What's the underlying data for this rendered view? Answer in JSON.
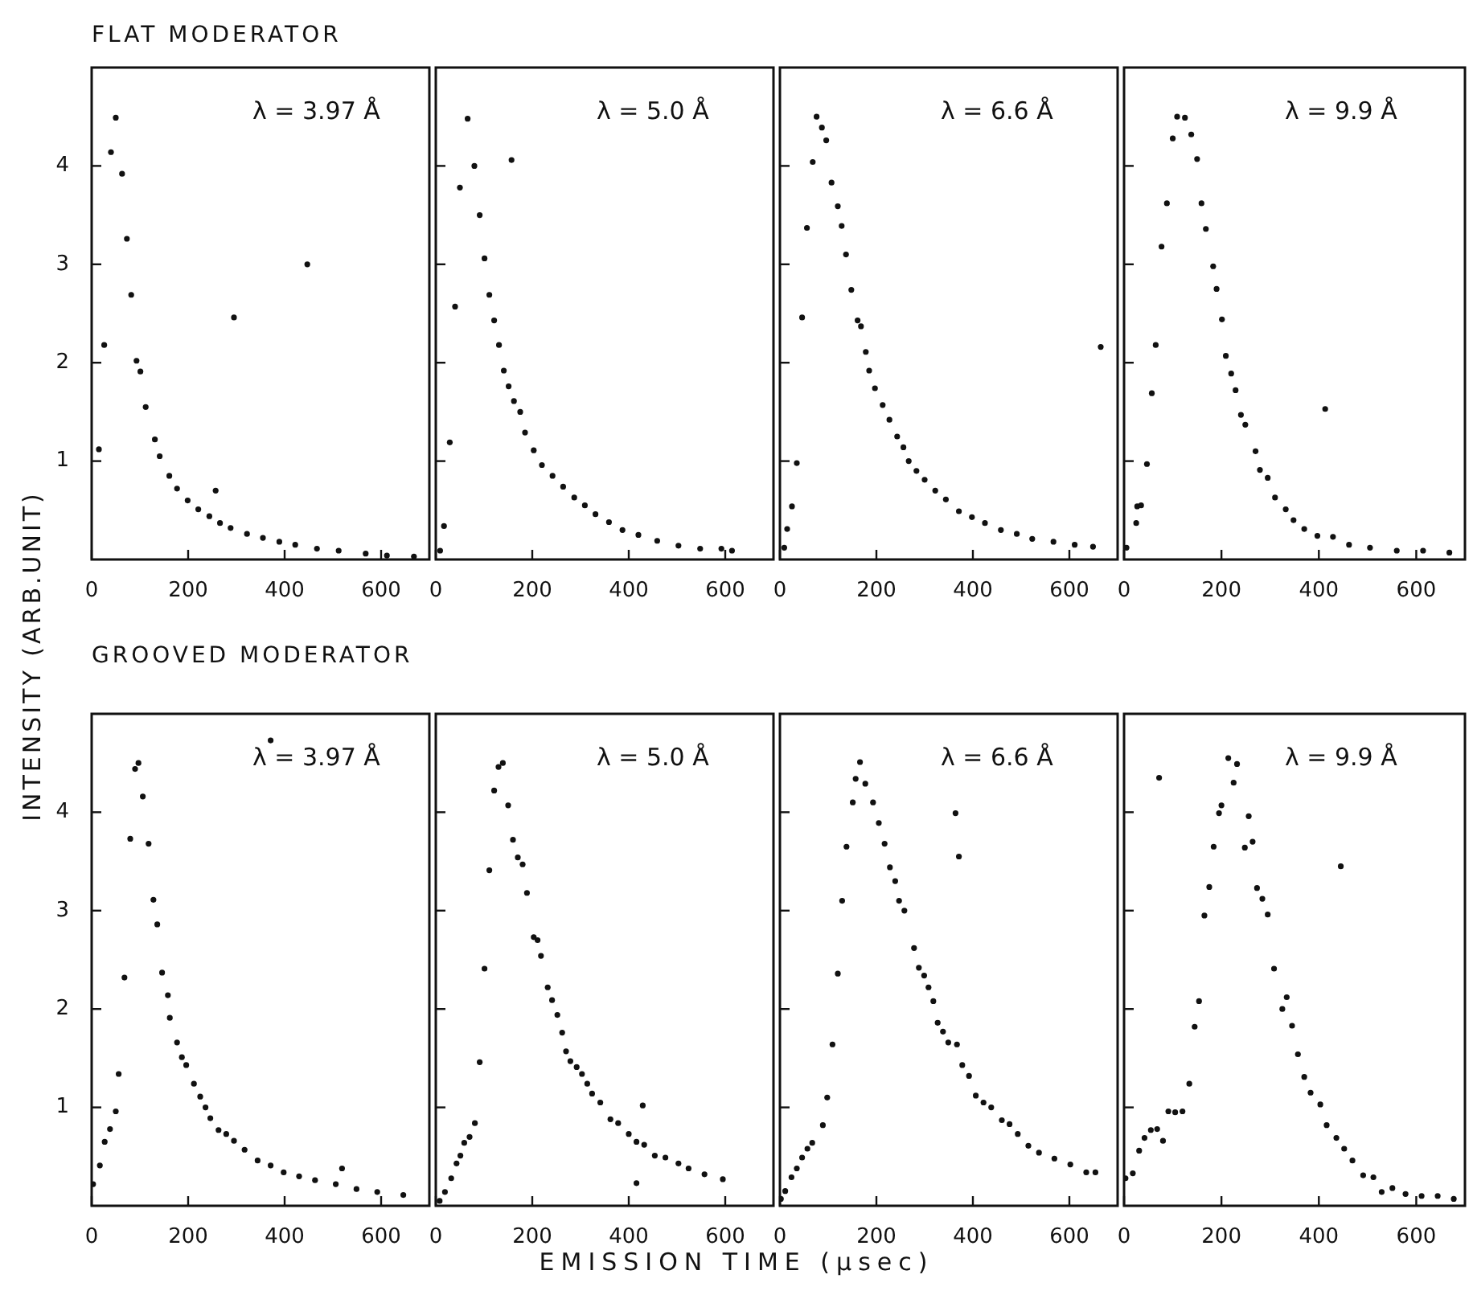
{
  "chart_data": [
    {
      "type": "scatter",
      "title": "FLAT MODERATOR",
      "ylabel": "INTENSITY (ARB.UNIT)",
      "annotations": [
        "λ = 3.97 Å"
      ],
      "color": "#111111",
      "marker": "circle",
      "xlim": [
        0,
        700
      ],
      "xticks": [
        0,
        200,
        400,
        600
      ],
      "ylim": [
        0,
        5
      ],
      "yticks": [
        1,
        2,
        3,
        4
      ],
      "x": [
        15,
        26,
        40,
        50,
        63,
        73,
        82,
        93,
        101,
        112,
        131,
        141,
        161,
        177,
        199,
        221,
        244,
        266,
        288,
        322,
        355,
        389,
        422,
        467,
        512,
        568,
        612,
        668,
        295,
        447,
        257
      ],
      "values": [
        1.12,
        2.18,
        4.14,
        4.49,
        3.92,
        3.26,
        2.69,
        2.02,
        1.91,
        1.55,
        1.22,
        1.05,
        0.85,
        0.72,
        0.6,
        0.51,
        0.44,
        0.37,
        0.32,
        0.26,
        0.22,
        0.18,
        0.15,
        0.11,
        0.09,
        0.06,
        0.04,
        0.03,
        2.46,
        3.0,
        0.7
      ]
    },
    {
      "type": "scatter",
      "annotations": [
        "λ = 5.0 Å"
      ],
      "color": "#111111",
      "marker": "circle",
      "xlim": [
        0,
        700
      ],
      "xticks": [
        0,
        200,
        400,
        600
      ],
      "ylim": [
        0,
        5
      ],
      "yticks": [
        1,
        2,
        3,
        4
      ],
      "tick_labels": "x",
      "x": [
        9,
        17,
        29,
        40,
        50,
        66,
        80,
        91,
        101,
        111,
        121,
        131,
        141,
        151,
        162,
        175,
        185,
        203,
        220,
        242,
        264,
        287,
        309,
        331,
        359,
        387,
        420,
        459,
        503,
        548,
        592,
        614,
        157
      ],
      "values": [
        0.09,
        0.34,
        1.19,
        2.57,
        3.78,
        4.48,
        4.0,
        3.5,
        3.06,
        2.69,
        2.43,
        2.18,
        1.92,
        1.76,
        1.61,
        1.5,
        1.29,
        1.11,
        0.96,
        0.85,
        0.74,
        0.63,
        0.55,
        0.46,
        0.38,
        0.3,
        0.25,
        0.19,
        0.14,
        0.11,
        0.11,
        0.09,
        4.06
      ]
    },
    {
      "type": "scatter",
      "annotations": [
        "λ = 6.6 Å"
      ],
      "color": "#111111",
      "marker": "circle",
      "xlim": [
        0,
        700
      ],
      "xticks": [
        0,
        200,
        400,
        600
      ],
      "ylim": [
        0,
        5
      ],
      "yticks": [
        1,
        2,
        3,
        4
      ],
      "tick_labels": "x",
      "x": [
        9,
        15,
        25,
        35,
        46,
        56,
        68,
        76,
        87,
        96,
        107,
        120,
        128,
        137,
        148,
        161,
        168,
        178,
        185,
        197,
        213,
        227,
        243,
        256,
        267,
        283,
        300,
        322,
        344,
        371,
        398,
        425,
        458,
        491,
        523,
        567,
        611,
        649,
        665
      ],
      "values": [
        0.12,
        0.31,
        0.54,
        0.98,
        2.46,
        3.37,
        4.04,
        4.5,
        4.39,
        4.26,
        3.83,
        3.59,
        3.39,
        3.1,
        2.74,
        2.43,
        2.37,
        2.11,
        1.92,
        1.74,
        1.57,
        1.42,
        1.25,
        1.14,
        1.0,
        0.9,
        0.81,
        0.7,
        0.61,
        0.49,
        0.43,
        0.37,
        0.3,
        0.26,
        0.21,
        0.18,
        0.15,
        0.13,
        2.16
      ]
    },
    {
      "type": "scatter",
      "annotations": [
        "λ = 9.9 Å"
      ],
      "color": "#111111",
      "marker": "circle",
      "xlim": [
        0,
        700
      ],
      "xticks": [
        0,
        200,
        400,
        600
      ],
      "ylim": [
        0,
        5
      ],
      "yticks": [
        1,
        2,
        3,
        4
      ],
      "tick_labels": "x",
      "x": [
        5,
        25,
        27,
        35,
        47,
        57,
        65,
        77,
        88,
        100,
        109,
        125,
        138,
        150,
        159,
        168,
        183,
        190,
        201,
        209,
        220,
        229,
        240,
        249,
        270,
        279,
        295,
        310,
        332,
        348,
        370,
        397,
        429,
        462,
        505,
        560,
        614,
        668,
        413
      ],
      "values": [
        0.12,
        0.37,
        0.54,
        0.55,
        0.97,
        1.69,
        2.18,
        3.18,
        3.62,
        4.28,
        4.5,
        4.49,
        4.32,
        4.07,
        3.62,
        3.36,
        2.98,
        2.75,
        2.44,
        2.07,
        1.89,
        1.72,
        1.47,
        1.37,
        1.1,
        0.91,
        0.83,
        0.63,
        0.51,
        0.4,
        0.31,
        0.24,
        0.23,
        0.15,
        0.12,
        0.09,
        0.09,
        0.07,
        1.53
      ]
    },
    {
      "type": "scatter",
      "title": "GROOVED MODERATOR",
      "annotations": [
        "λ = 3.97 Å"
      ],
      "color": "#111111",
      "marker": "circle",
      "xlim": [
        0,
        700
      ],
      "xticks": [
        0,
        200,
        400,
        600
      ],
      "ylim": [
        0,
        5
      ],
      "yticks": [
        1,
        2,
        3,
        4
      ],
      "x": [
        3,
        17,
        27,
        38,
        50,
        56,
        68,
        80,
        90,
        97,
        106,
        118,
        128,
        136,
        146,
        158,
        162,
        177,
        187,
        196,
        212,
        225,
        236,
        246,
        263,
        279,
        295,
        317,
        344,
        371,
        398,
        430,
        463,
        506,
        549,
        592,
        646,
        371,
        519
      ],
      "values": [
        0.22,
        0.41,
        0.65,
        0.78,
        0.96,
        1.34,
        2.32,
        3.73,
        4.44,
        4.5,
        4.16,
        3.68,
        3.11,
        2.86,
        2.37,
        2.14,
        1.91,
        1.66,
        1.51,
        1.43,
        1.24,
        1.11,
        1.0,
        0.89,
        0.77,
        0.73,
        0.66,
        0.57,
        0.46,
        0.41,
        0.34,
        0.3,
        0.26,
        0.22,
        0.17,
        0.14,
        0.11,
        4.73,
        0.38
      ]
    },
    {
      "type": "scatter",
      "xlabel": "EMISSION TIME (μsec)",
      "annotations": [
        "λ = 5.0 Å"
      ],
      "color": "#111111",
      "marker": "circle",
      "xlim": [
        0,
        700
      ],
      "xticks": [
        0,
        200,
        400,
        600
      ],
      "ylim": [
        0,
        5
      ],
      "yticks": [
        1,
        2,
        3,
        4
      ],
      "tick_labels": "x",
      "x": [
        8,
        19,
        32,
        43,
        51,
        59,
        70,
        81,
        91,
        101,
        111,
        121,
        130,
        139,
        150,
        160,
        170,
        180,
        189,
        203,
        211,
        218,
        232,
        241,
        252,
        262,
        270,
        279,
        292,
        303,
        314,
        324,
        341,
        362,
        378,
        400,
        416,
        432,
        454,
        476,
        503,
        524,
        557,
        595,
        429,
        416
      ],
      "values": [
        0.05,
        0.14,
        0.28,
        0.43,
        0.51,
        0.64,
        0.7,
        0.84,
        1.46,
        2.41,
        3.41,
        4.22,
        4.46,
        4.5,
        4.07,
        3.72,
        3.54,
        3.47,
        3.18,
        2.73,
        2.7,
        2.54,
        2.22,
        2.09,
        1.94,
        1.76,
        1.57,
        1.47,
        1.41,
        1.34,
        1.24,
        1.14,
        1.05,
        0.88,
        0.84,
        0.73,
        0.65,
        0.62,
        0.51,
        0.49,
        0.43,
        0.38,
        0.32,
        0.27,
        1.02,
        0.23
      ]
    },
    {
      "type": "scatter",
      "annotations": [
        "λ = 6.6 Å"
      ],
      "color": "#111111",
      "marker": "circle",
      "xlim": [
        0,
        700
      ],
      "xticks": [
        0,
        200,
        400,
        600
      ],
      "ylim": [
        0,
        5
      ],
      "yticks": [
        1,
        2,
        3,
        4
      ],
      "tick_labels": "x",
      "x": [
        2,
        11,
        24,
        35,
        46,
        57,
        67,
        89,
        98,
        109,
        120,
        129,
        138,
        151,
        157,
        166,
        177,
        193,
        205,
        217,
        228,
        239,
        247,
        258,
        278,
        288,
        299,
        308,
        318,
        327,
        338,
        349,
        367,
        378,
        392,
        406,
        422,
        438,
        460,
        476,
        493,
        515,
        537,
        569,
        602,
        635,
        654,
        364,
        371
      ],
      "values": [
        0.07,
        0.15,
        0.29,
        0.38,
        0.49,
        0.58,
        0.64,
        0.82,
        1.1,
        1.64,
        2.36,
        3.1,
        3.65,
        4.1,
        4.34,
        4.51,
        4.29,
        4.1,
        3.89,
        3.68,
        3.44,
        3.3,
        3.1,
        3.0,
        2.62,
        2.42,
        2.34,
        2.22,
        2.08,
        1.86,
        1.77,
        1.66,
        1.64,
        1.43,
        1.32,
        1.12,
        1.05,
        1.0,
        0.87,
        0.83,
        0.73,
        0.61,
        0.54,
        0.48,
        0.42,
        0.34,
        0.34,
        3.99,
        3.55
      ]
    },
    {
      "type": "scatter",
      "annotations": [
        "λ = 9.9 Å"
      ],
      "color": "#111111",
      "marker": "circle",
      "xlim": [
        0,
        700
      ],
      "xticks": [
        0,
        200,
        400,
        600
      ],
      "ylim": [
        0,
        5
      ],
      "yticks": [
        1,
        2,
        3,
        4
      ],
      "tick_labels": "x",
      "x": [
        3,
        18,
        31,
        42,
        55,
        68,
        80,
        91,
        105,
        120,
        134,
        145,
        154,
        165,
        175,
        184,
        195,
        200,
        214,
        225,
        232,
        248,
        256,
        264,
        273,
        284,
        295,
        308,
        325,
        334,
        345,
        357,
        370,
        383,
        403,
        416,
        436,
        452,
        469,
        491,
        512,
        529,
        551,
        578,
        611,
        644,
        677,
        72,
        445
      ],
      "values": [
        0.28,
        0.33,
        0.56,
        0.69,
        0.77,
        0.78,
        0.66,
        0.96,
        0.95,
        0.96,
        1.24,
        1.82,
        2.08,
        2.95,
        3.24,
        3.65,
        3.99,
        4.07,
        4.55,
        4.3,
        4.49,
        3.64,
        3.96,
        3.7,
        3.23,
        3.12,
        2.96,
        2.41,
        2.0,
        2.12,
        1.83,
        1.54,
        1.31,
        1.15,
        1.03,
        0.82,
        0.69,
        0.58,
        0.46,
        0.31,
        0.29,
        0.14,
        0.18,
        0.12,
        0.1,
        0.1,
        0.07,
        4.35,
        3.45
      ]
    }
  ]
}
